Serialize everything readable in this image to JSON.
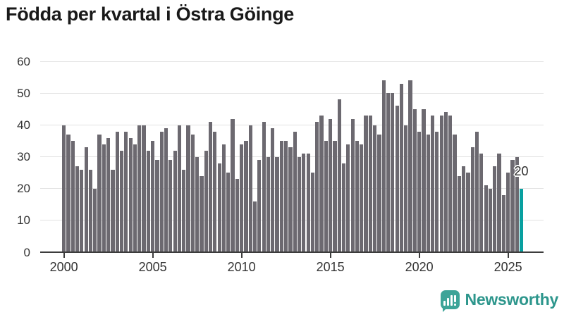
{
  "title": "Födda per kvartal i Östra Göinge",
  "chart_data": {
    "type": "bar",
    "title": "Födda per kvartal i Östra Göinge",
    "xlabel": "",
    "ylabel": "",
    "ylim": [
      0,
      60
    ],
    "grid": "horizontal",
    "y_ticks": [
      0,
      10,
      20,
      30,
      40,
      50,
      60
    ],
    "x_tick_labels": [
      "2000",
      "2005",
      "2010",
      "2015",
      "2020",
      "2025"
    ],
    "x_tick_positions_quarters": [
      0,
      20,
      40,
      60,
      80,
      100
    ],
    "frequency": "quarterly",
    "categories": [
      "2000K1",
      "2000K2",
      "2000K3",
      "2000K4",
      "2001K1",
      "2001K2",
      "2001K3",
      "2001K4",
      "2002K1",
      "2002K2",
      "2002K3",
      "2002K4",
      "2003K1",
      "2003K2",
      "2003K3",
      "2003K4",
      "2004K1",
      "2004K2",
      "2004K3",
      "2004K4",
      "2005K1",
      "2005K2",
      "2005K3",
      "2005K4",
      "2006K1",
      "2006K2",
      "2006K3",
      "2006K4",
      "2007K1",
      "2007K2",
      "2007K3",
      "2007K4",
      "2008K1",
      "2008K2",
      "2008K3",
      "2008K4",
      "2009K1",
      "2009K2",
      "2009K3",
      "2009K4",
      "2010K1",
      "2010K2",
      "2010K3",
      "2010K4",
      "2011K1",
      "2011K2",
      "2011K3",
      "2011K4",
      "2012K1",
      "2012K2",
      "2012K3",
      "2012K4",
      "2013K1",
      "2013K2",
      "2013K3",
      "2013K4",
      "2014K1",
      "2014K2",
      "2014K3",
      "2014K4",
      "2015K1",
      "2015K2",
      "2015K3",
      "2015K4",
      "2016K1",
      "2016K2",
      "2016K3",
      "2016K4",
      "2017K1",
      "2017K2",
      "2017K3",
      "2017K4",
      "2018K1",
      "2018K2",
      "2018K3",
      "2018K4",
      "2019K1",
      "2019K2",
      "2019K3",
      "2019K4",
      "2020K1",
      "2020K2",
      "2020K3",
      "2020K4",
      "2021K1",
      "2021K2",
      "2021K3",
      "2021K4",
      "2022K1",
      "2022K2",
      "2022K3",
      "2022K4",
      "2023K1",
      "2023K2",
      "2023K3",
      "2023K4",
      "2024K1",
      "2024K2",
      "2024K3",
      "2024K4",
      "2025K1",
      "2025K2",
      "2025K3",
      "2025K4"
    ],
    "values": [
      40,
      37,
      35,
      27,
      26,
      33,
      26,
      20,
      37,
      34,
      36,
      26,
      38,
      32,
      38,
      36,
      34,
      40,
      40,
      32,
      35,
      29,
      38,
      39,
      29,
      32,
      40,
      26,
      40,
      37,
      30,
      24,
      32,
      41,
      38,
      28,
      34,
      25,
      42,
      23,
      34,
      35,
      40,
      16,
      29,
      41,
      30,
      39,
      30,
      35,
      35,
      33,
      38,
      30,
      31,
      31,
      25,
      41,
      43,
      35,
      42,
      35,
      48,
      28,
      34,
      42,
      35,
      34,
      43,
      43,
      40,
      37,
      54,
      50,
      50,
      46,
      53,
      40,
      54,
      45,
      38,
      45,
      37,
      43,
      38,
      43,
      44,
      43,
      37,
      24,
      27,
      25,
      33,
      38,
      31,
      21,
      20,
      27,
      31,
      18,
      25,
      29,
      30,
      20
    ],
    "highlight_index": 103,
    "annotation": {
      "text": "20"
    },
    "colors": {
      "bar": "#6c6970",
      "highlight": "#08a0a0",
      "grid": "#e3e3e3",
      "axis": "#3c3c3c",
      "tick_text": "#333333",
      "title_text": "#191919"
    }
  },
  "branding": {
    "logo_text": "Newsworthy",
    "logo_text_color": "#2d968c",
    "logo_icon_color": "#3da498",
    "logo_icon": "newsworthy-bar-chart-bubble-icon"
  }
}
